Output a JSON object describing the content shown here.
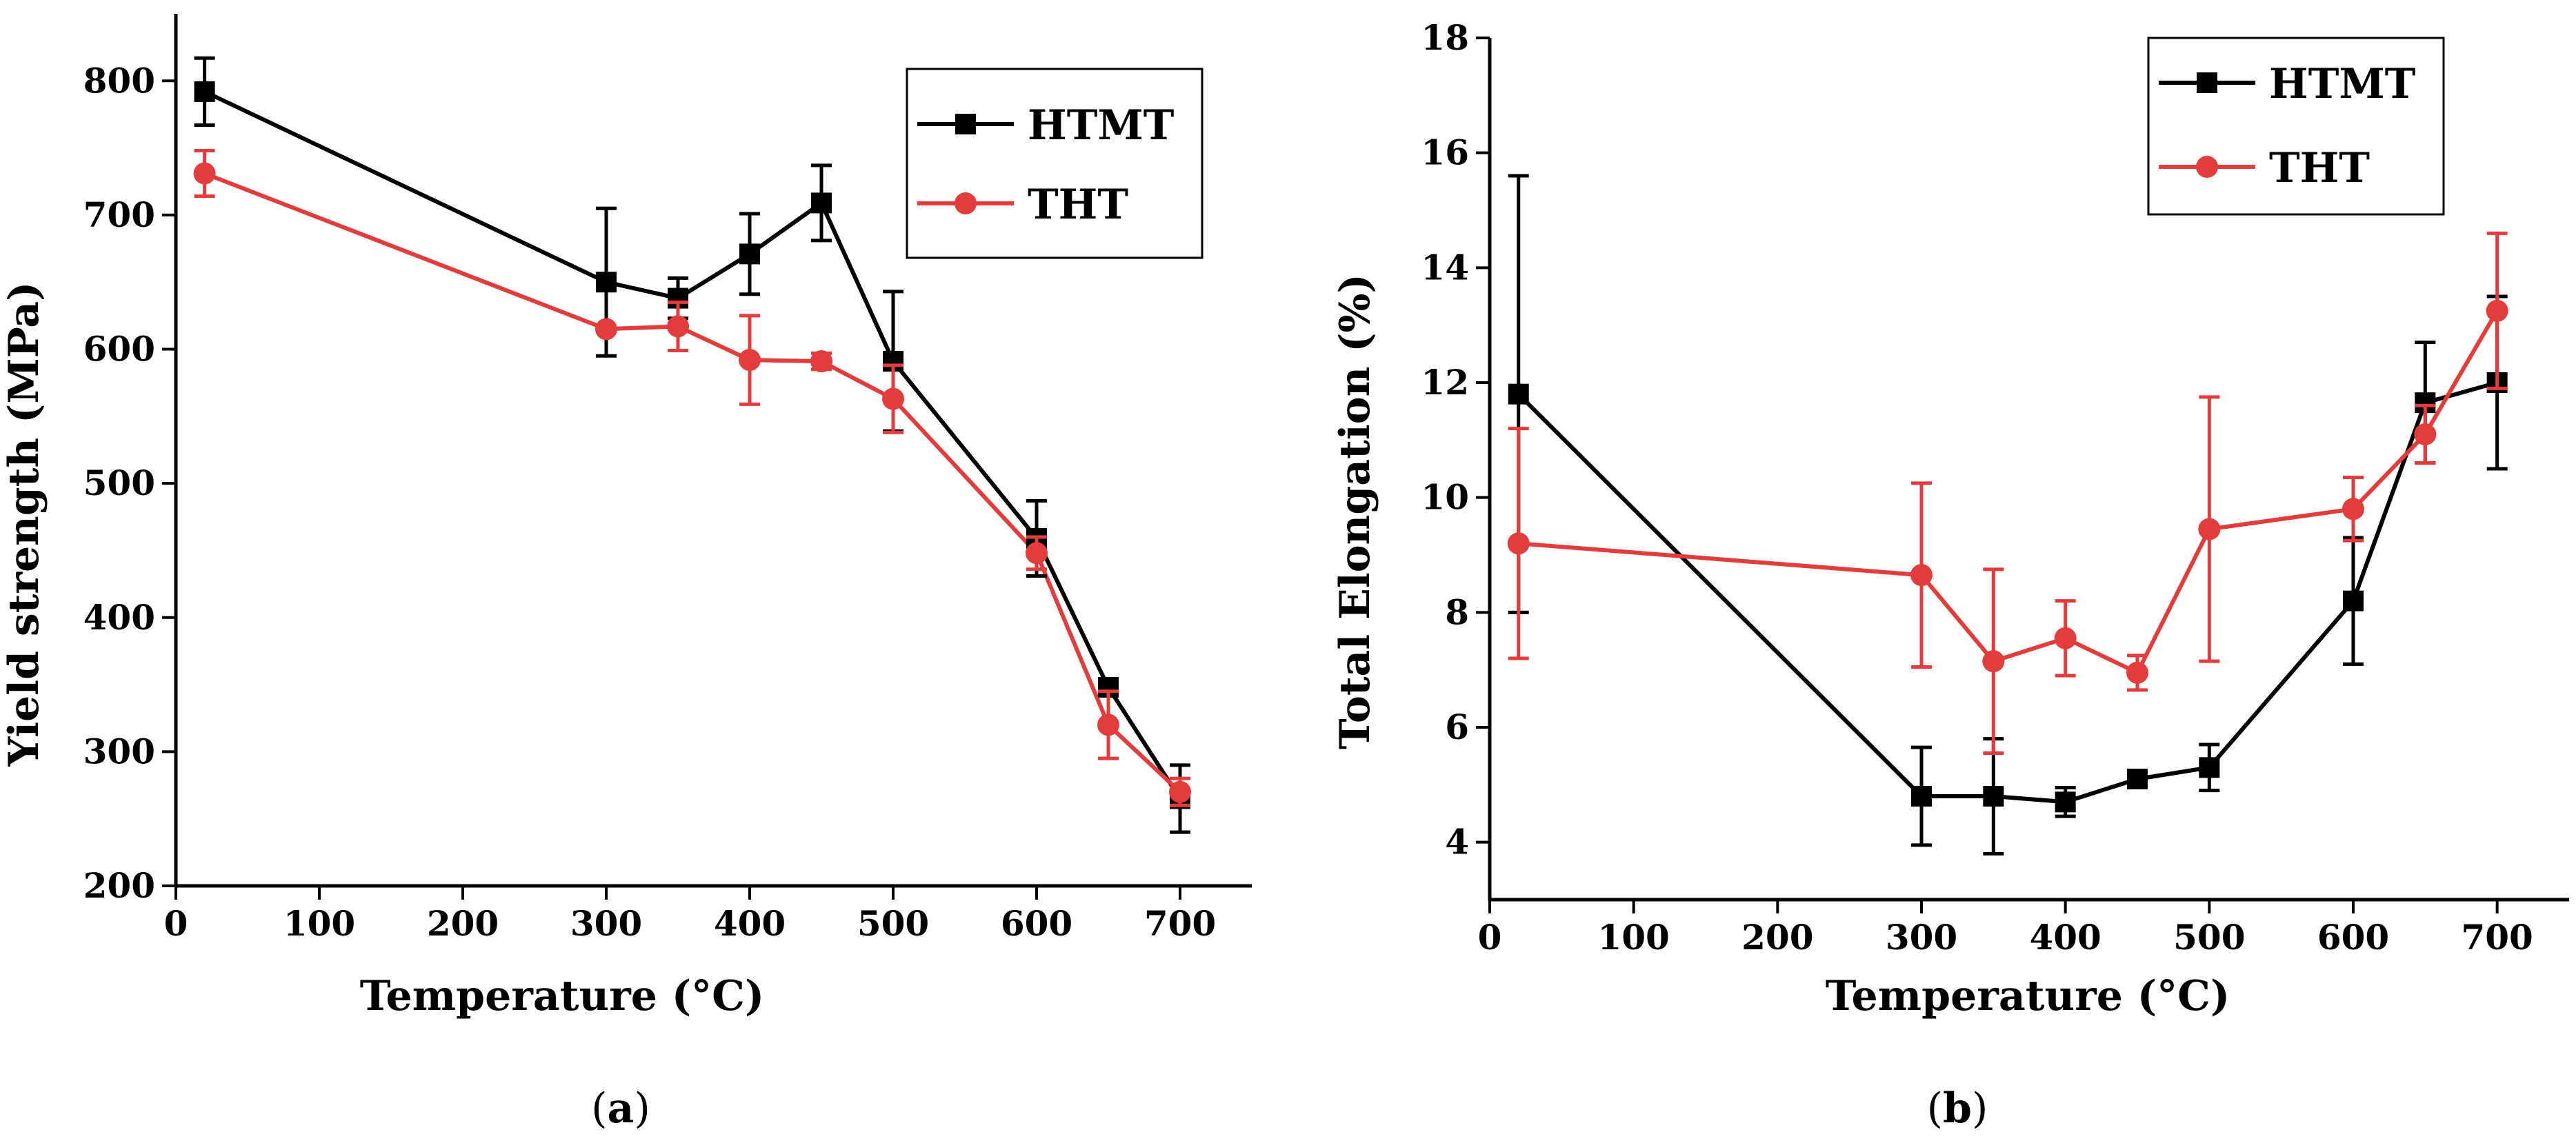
{
  "chart_data": [
    {
      "type": "line",
      "panel_label": "a",
      "xlabel": "Temperature (°C)",
      "ylabel": "Yield strength (MPa)",
      "xlim": [
        0,
        750
      ],
      "ylim": [
        200,
        850
      ],
      "xticks": [
        0,
        100,
        200,
        300,
        400,
        500,
        600,
        700
      ],
      "yticks": [
        200,
        300,
        400,
        500,
        600,
        700,
        800
      ],
      "grid": false,
      "legend_position": "top-right",
      "series": [
        {
          "name": "HTMT",
          "color": "#000000",
          "marker": "square",
          "x": [
            20,
            300,
            350,
            400,
            450,
            500,
            600,
            650,
            700
          ],
          "y": [
            792,
            650,
            638,
            671,
            709,
            591,
            459,
            348,
            265
          ],
          "err": [
            25,
            55,
            15,
            30,
            28,
            52,
            28,
            6,
            25
          ]
        },
        {
          "name": "THT",
          "color": "#e33c3c",
          "marker": "circle",
          "x": [
            20,
            300,
            350,
            400,
            450,
            500,
            600,
            650,
            700
          ],
          "y": [
            731,
            615,
            617,
            592,
            591,
            563,
            448,
            320,
            270
          ],
          "err": [
            17,
            0,
            18,
            33,
            6,
            25,
            12,
            25,
            10
          ]
        }
      ]
    },
    {
      "type": "line",
      "panel_label": "b",
      "xlabel": "Temperature (°C)",
      "ylabel": "Total Elongation (%)",
      "xlim": [
        0,
        750
      ],
      "ylim": [
        3,
        18
      ],
      "xticks": [
        0,
        100,
        200,
        300,
        400,
        500,
        600,
        700
      ],
      "yticks": [
        4,
        6,
        8,
        10,
        12,
        14,
        16,
        18
      ],
      "grid": false,
      "legend_position": "top-left",
      "series": [
        {
          "name": "HTMT",
          "color": "#000000",
          "marker": "square",
          "x": [
            20,
            300,
            350,
            400,
            450,
            500,
            600,
            650,
            700
          ],
          "y": [
            11.8,
            4.8,
            4.8,
            4.7,
            5.1,
            5.3,
            8.2,
            11.65,
            12.0
          ],
          "err": [
            3.8,
            0.85,
            1.0,
            0.25,
            0.1,
            0.4,
            1.1,
            1.05,
            1.5
          ]
        },
        {
          "name": "THT",
          "color": "#e33c3c",
          "marker": "circle",
          "x": [
            20,
            300,
            350,
            400,
            450,
            500,
            600,
            650,
            700
          ],
          "y": [
            9.2,
            8.65,
            7.15,
            7.55,
            6.95,
            9.45,
            9.8,
            11.1,
            13.25
          ],
          "err": [
            2.0,
            1.6,
            1.6,
            0.65,
            0.3,
            2.3,
            0.55,
            0.5,
            1.35
          ]
        }
      ]
    }
  ]
}
